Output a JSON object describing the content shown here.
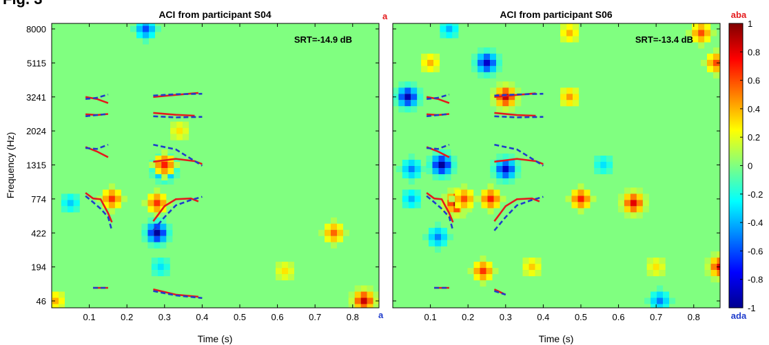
{
  "figure": {
    "label": "Fig. 3"
  },
  "chart_data": [
    {
      "type": "heatmap",
      "title": "ACI from participant S04",
      "annotation": "SRT=-14.9 dB",
      "xlabel": "Time (s)",
      "ylabel": "Frequency (Hz)",
      "xlim": [
        0,
        0.87
      ],
      "xticks": [
        0.1,
        0.2,
        0.3,
        0.4,
        0.5,
        0.6,
        0.7,
        0.8
      ],
      "yticks": [
        "46",
        "194",
        "422",
        "774",
        "1315",
        "2024",
        "3241",
        "5115",
        "8000"
      ],
      "background_value": 0.0,
      "blobs": [
        {
          "t": 0.01,
          "f": "46",
          "v": 0.4
        },
        {
          "t": 0.05,
          "f": "774",
          "v": -0.35
        },
        {
          "t": 0.16,
          "f": "774",
          "v": 0.65
        },
        {
          "t": 0.25,
          "f": "8000",
          "v": -0.6
        },
        {
          "t": 0.28,
          "f": "774",
          "v": 0.65
        },
        {
          "t": 0.28,
          "f": "422",
          "v": -0.95
        },
        {
          "t": 0.29,
          "f": "194",
          "v": -0.3
        },
        {
          "t": 0.3,
          "f": "1315",
          "v": -0.85
        },
        {
          "t": 0.3,
          "f": "1315",
          "v": 0.7
        },
        {
          "t": 0.34,
          "f": "2024",
          "v": 0.3
        },
        {
          "t": 0.62,
          "f": "194",
          "v": 0.3
        },
        {
          "t": 0.75,
          "f": "422",
          "v": 0.55
        },
        {
          "t": 0.83,
          "f": "46",
          "v": 0.85
        }
      ],
      "formant_tracks": [
        {
          "color": "#e41a1c",
          "style": "solid",
          "points": [
            [
              0.09,
              3241
            ],
            [
              0.12,
              3150
            ],
            [
              0.15,
              2980
            ]
          ]
        },
        {
          "color": "#1f3ccc",
          "style": "dashed",
          "points": [
            [
              0.09,
              3150
            ],
            [
              0.12,
              3200
            ],
            [
              0.15,
              3350
            ]
          ]
        },
        {
          "color": "#e41a1c",
          "style": "solid",
          "points": [
            [
              0.09,
              2550
            ],
            [
              0.12,
              2520
            ],
            [
              0.15,
              2560
            ]
          ]
        },
        {
          "color": "#1f3ccc",
          "style": "dashed",
          "points": [
            [
              0.09,
              2480
            ],
            [
              0.12,
              2520
            ],
            [
              0.15,
              2560
            ]
          ]
        },
        {
          "color": "#e41a1c",
          "style": "solid",
          "points": [
            [
              0.09,
              1650
            ],
            [
              0.12,
              1560
            ],
            [
              0.15,
              1450
            ]
          ]
        },
        {
          "color": "#1f3ccc",
          "style": "dashed",
          "points": [
            [
              0.09,
              1630
            ],
            [
              0.12,
              1610
            ],
            [
              0.15,
              1700
            ]
          ]
        },
        {
          "color": "#e41a1c",
          "style": "solid",
          "points": [
            [
              0.09,
              850
            ],
            [
              0.11,
              780
            ],
            [
              0.13,
              770
            ],
            [
              0.15,
              600
            ],
            [
              0.16,
              510
            ]
          ]
        },
        {
          "color": "#1f3ccc",
          "style": "dashed",
          "points": [
            [
              0.09,
              810
            ],
            [
              0.11,
              730
            ],
            [
              0.13,
              650
            ],
            [
              0.15,
              560
            ],
            [
              0.16,
              440
            ]
          ]
        },
        {
          "color": "#e41a1c",
          "style": "solid",
          "points": [
            [
              0.11,
              80
            ],
            [
              0.15,
              80
            ]
          ]
        },
        {
          "color": "#1f3ccc",
          "style": "dashed",
          "points": [
            [
              0.11,
              80
            ],
            [
              0.15,
              80
            ]
          ]
        }
      ]
    },
    {
      "type": "heatmap",
      "title": "ACI from participant S06",
      "annotation": "SRT=-13.4 dB",
      "xlabel": "Time (s)",
      "ylabel": "",
      "xlim": [
        0,
        0.87
      ],
      "xticks": [
        0.1,
        0.2,
        0.3,
        0.4,
        0.5,
        0.6,
        0.7,
        0.8
      ],
      "yticks": [
        "46",
        "194",
        "422",
        "774",
        "1315",
        "2024",
        "3241",
        "5115",
        "8000"
      ],
      "background_value": 0.0,
      "blobs": [
        {
          "t": 0.04,
          "f": "3241",
          "v": -0.9
        },
        {
          "t": 0.05,
          "f": "1315",
          "v": -0.5
        },
        {
          "t": 0.05,
          "f": "774",
          "v": -0.4
        },
        {
          "t": 0.1,
          "f": "5115",
          "v": 0.4
        },
        {
          "t": 0.12,
          "f": "422",
          "v": -0.5
        },
        {
          "t": 0.13,
          "f": "1315",
          "v": -0.95
        },
        {
          "t": 0.15,
          "f": "8000",
          "v": -0.4
        },
        {
          "t": 0.17,
          "f": "774",
          "v": 0.95
        },
        {
          "t": 0.19,
          "f": "774",
          "v": 0.6
        },
        {
          "t": 0.25,
          "f": "5115",
          "v": -0.85
        },
        {
          "t": 0.24,
          "f": "194",
          "v": 0.65
        },
        {
          "t": 0.26,
          "f": "774",
          "v": 0.7
        },
        {
          "t": 0.3,
          "f": "3241",
          "v": 0.85
        },
        {
          "t": 0.3,
          "f": "1315",
          "v": -0.85
        },
        {
          "t": 0.37,
          "f": "194",
          "v": 0.35
        },
        {
          "t": 0.47,
          "f": "3241",
          "v": 0.45
        },
        {
          "t": 0.47,
          "f": "8000",
          "v": 0.4
        },
        {
          "t": 0.5,
          "f": "774",
          "v": 0.7
        },
        {
          "t": 0.56,
          "f": "1315",
          "v": -0.3
        },
        {
          "t": 0.64,
          "f": "774",
          "v": 0.8
        },
        {
          "t": 0.7,
          "f": "194",
          "v": 0.3
        },
        {
          "t": 0.71,
          "f": "46",
          "v": -0.5
        },
        {
          "t": 0.82,
          "f": "8000",
          "v": 0.6
        },
        {
          "t": 0.86,
          "f": "5115",
          "v": 0.6
        },
        {
          "t": 0.87,
          "f": "194",
          "v": 0.8
        }
      ],
      "formant_tracks": [
        {
          "color": "#e41a1c",
          "style": "solid",
          "points": [
            [
              0.09,
              3241
            ],
            [
              0.12,
              3150
            ],
            [
              0.15,
              2980
            ]
          ]
        },
        {
          "color": "#1f3ccc",
          "style": "dashed",
          "points": [
            [
              0.09,
              3150
            ],
            [
              0.12,
              3200
            ],
            [
              0.15,
              3350
            ]
          ]
        },
        {
          "color": "#e41a1c",
          "style": "solid",
          "points": [
            [
              0.09,
              2550
            ],
            [
              0.12,
              2520
            ],
            [
              0.15,
              2560
            ]
          ]
        },
        {
          "color": "#1f3ccc",
          "style": "dashed",
          "points": [
            [
              0.09,
              2480
            ],
            [
              0.12,
              2520
            ],
            [
              0.15,
              2560
            ]
          ]
        },
        {
          "color": "#e41a1c",
          "style": "solid",
          "points": [
            [
              0.09,
              1650
            ],
            [
              0.12,
              1560
            ],
            [
              0.15,
              1450
            ]
          ]
        },
        {
          "color": "#1f3ccc",
          "style": "dashed",
          "points": [
            [
              0.09,
              1630
            ],
            [
              0.12,
              1610
            ],
            [
              0.15,
              1700
            ]
          ]
        },
        {
          "color": "#e41a1c",
          "style": "solid",
          "points": [
            [
              0.09,
              850
            ],
            [
              0.11,
              780
            ],
            [
              0.13,
              770
            ],
            [
              0.15,
              600
            ],
            [
              0.16,
              510
            ]
          ]
        },
        {
          "color": "#1f3ccc",
          "style": "dashed",
          "points": [
            [
              0.09,
              810
            ],
            [
              0.11,
              730
            ],
            [
              0.13,
              650
            ],
            [
              0.15,
              560
            ],
            [
              0.16,
              440
            ]
          ]
        },
        {
          "color": "#e41a1c",
          "style": "solid",
          "points": [
            [
              0.11,
              80
            ],
            [
              0.15,
              80
            ]
          ]
        },
        {
          "color": "#1f3ccc",
          "style": "dashed",
          "points": [
            [
              0.11,
              80
            ],
            [
              0.15,
              80
            ]
          ]
        },
        {
          "color": "#e41a1c",
          "style": "solid",
          "points": [
            [
              0.27,
              3241
            ],
            [
              0.33,
              3330
            ],
            [
              0.38,
              3400
            ]
          ]
        },
        {
          "color": "#1f3ccc",
          "style": "dashed",
          "points": [
            [
              0.27,
              3300
            ],
            [
              0.33,
              3350
            ],
            [
              0.4,
              3380
            ]
          ]
        },
        {
          "color": "#e41a1c",
          "style": "solid",
          "points": [
            [
              0.27,
              2600
            ],
            [
              0.33,
              2520
            ],
            [
              0.38,
              2500
            ]
          ]
        },
        {
          "color": "#1f3ccc",
          "style": "dashed",
          "points": [
            [
              0.27,
              2480
            ],
            [
              0.33,
              2440
            ],
            [
              0.4,
              2460
            ]
          ]
        },
        {
          "color": "#e41a1c",
          "style": "solid",
          "points": [
            [
              0.27,
              1370
            ],
            [
              0.33,
              1420
            ],
            [
              0.38,
              1380
            ],
            [
              0.4,
              1330
            ]
          ]
        },
        {
          "color": "#1f3ccc",
          "style": "dashed",
          "points": [
            [
              0.27,
              1700
            ],
            [
              0.33,
              1600
            ],
            [
              0.4,
              1300
            ]
          ]
        },
        {
          "color": "#e41a1c",
          "style": "solid",
          "points": [
            [
              0.27,
              520
            ],
            [
              0.3,
              680
            ],
            [
              0.33,
              770
            ],
            [
              0.37,
              780
            ],
            [
              0.39,
              740
            ]
          ]
        },
        {
          "color": "#1f3ccc",
          "style": "dashed",
          "points": [
            [
              0.27,
              440
            ],
            [
              0.3,
              560
            ],
            [
              0.33,
              690
            ],
            [
              0.37,
              760
            ],
            [
              0.4,
              800
            ]
          ]
        },
        {
          "color": "#e41a1c",
          "style": "solid",
          "points": [
            [
              0.27,
              75
            ],
            [
              0.3,
              60
            ]
          ]
        },
        {
          "color": "#1f3ccc",
          "style": "dashed",
          "points": [
            [
              0.27,
              70
            ],
            [
              0.3,
              60
            ]
          ]
        }
      ]
    }
  ],
  "s04_extra_tracks": [
    {
      "color": "#e41a1c",
      "style": "solid",
      "points": [
        [
          0.27,
          3241
        ],
        [
          0.33,
          3330
        ],
        [
          0.39,
          3420
        ]
      ]
    },
    {
      "color": "#1f3ccc",
      "style": "dashed",
      "points": [
        [
          0.27,
          3300
        ],
        [
          0.33,
          3360
        ],
        [
          0.4,
          3380
        ]
      ]
    },
    {
      "color": "#e41a1c",
      "style": "solid",
      "points": [
        [
          0.27,
          2600
        ],
        [
          0.33,
          2530
        ],
        [
          0.38,
          2500
        ]
      ]
    },
    {
      "color": "#1f3ccc",
      "style": "dashed",
      "points": [
        [
          0.27,
          2480
        ],
        [
          0.33,
          2440
        ],
        [
          0.4,
          2460
        ]
      ]
    },
    {
      "color": "#e41a1c",
      "style": "solid",
      "points": [
        [
          0.27,
          1370
        ],
        [
          0.33,
          1420
        ],
        [
          0.38,
          1380
        ],
        [
          0.4,
          1330
        ]
      ]
    },
    {
      "color": "#1f3ccc",
      "style": "dashed",
      "points": [
        [
          0.27,
          1700
        ],
        [
          0.33,
          1600
        ],
        [
          0.4,
          1300
        ]
      ]
    },
    {
      "color": "#e41a1c",
      "style": "solid",
      "points": [
        [
          0.27,
          520
        ],
        [
          0.3,
          680
        ],
        [
          0.33,
          770
        ],
        [
          0.37,
          780
        ],
        [
          0.39,
          740
        ]
      ]
    },
    {
      "color": "#1f3ccc",
      "style": "dashed",
      "points": [
        [
          0.27,
          440
        ],
        [
          0.3,
          560
        ],
        [
          0.33,
          690
        ],
        [
          0.37,
          760
        ],
        [
          0.4,
          800
        ]
      ]
    },
    {
      "color": "#e41a1c",
      "style": "solid",
      "points": [
        [
          0.27,
          75
        ],
        [
          0.33,
          60
        ],
        [
          0.39,
          55
        ]
      ]
    },
    {
      "color": "#1f3ccc",
      "style": "dashed",
      "points": [
        [
          0.27,
          70
        ],
        [
          0.33,
          58
        ],
        [
          0.4,
          52
        ]
      ]
    }
  ],
  "colorbar": {
    "ticks": [
      "1",
      "0.8",
      "0.6",
      "0.4",
      "0.2",
      "0",
      "-0.2",
      "-0.4",
      "-0.6",
      "-0.8",
      "-1"
    ],
    "top_label": "aba",
    "bottom_label": "ada",
    "top_color": "#e41a1c",
    "bottom_color": "#1f3ccc"
  },
  "side_labels": {
    "s04_top": "a",
    "s04_bottom": "a"
  }
}
